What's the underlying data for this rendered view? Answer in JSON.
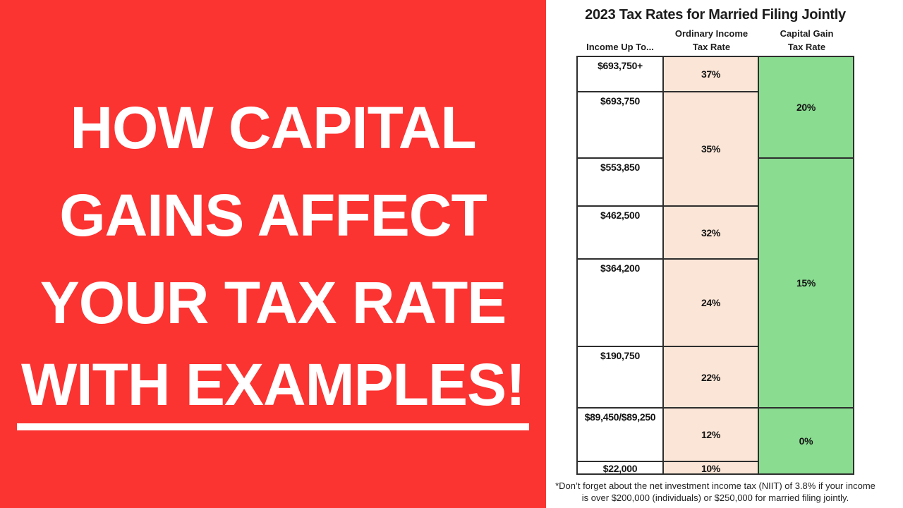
{
  "headline": {
    "lines": [
      "HOW CAPITAL",
      "GAINS AFFECT",
      "YOUR TAX RATE",
      "WITH EXAMPLES!"
    ],
    "underlined_line_index": 3,
    "text_color": "#ffffff",
    "background_color": "#fb3331"
  },
  "table": {
    "title": "2023 Tax Rates for Married Filing Jointly",
    "headers": {
      "income": "Income Up To...",
      "ordinary_line1": "Ordinary Income",
      "ordinary_line2": "Tax Rate",
      "capital_line1": "Capital Gain",
      "capital_line2": "Tax Rate"
    },
    "income": [
      "$693,750+",
      "$693,750",
      "$553,850",
      "$462,500",
      "$364,200",
      "$190,750",
      "$89,450/$89,250",
      "$22,000"
    ],
    "ordinary": [
      "37%",
      "35%",
      "32%",
      "24%",
      "22%",
      "12%",
      "10%"
    ],
    "capital": [
      "20%",
      "15%",
      "0%"
    ],
    "footnote_line1": "*Don’t forget about the net investment income tax (NIIT) of 3.8% if your income",
    "footnote_line2": "is over $200,000 (individuals) or $250,000 for married filing jointly.",
    "colors": {
      "ordinary_cell": "#fbe5d6",
      "capital_cell": "#89dc90",
      "border": "#2e2e2e"
    }
  },
  "chart_data": {
    "type": "table",
    "title": "2023 Tax Rates for Married Filing Jointly",
    "columns": [
      "Income Up To...",
      "Ordinary Income Tax Rate",
      "Capital Gain Tax Rate"
    ],
    "rows": [
      [
        "$693,750+",
        "37%",
        "20%"
      ],
      [
        "$693,750",
        "35%",
        "20%"
      ],
      [
        "$553,850",
        "35%",
        "15%"
      ],
      [
        "$462,500",
        "32%",
        "15%"
      ],
      [
        "$364,200",
        "24%",
        "15%"
      ],
      [
        "$190,750",
        "22%",
        "15%"
      ],
      [
        "$89,450/$89,250",
        "12%",
        "0%"
      ],
      [
        "$22,000",
        "10%",
        "0%"
      ]
    ],
    "merged_cells": {
      "ordinary_income": [
        {
          "label": "37%",
          "rows": [
            "$693,750+"
          ]
        },
        {
          "label": "35%",
          "rows": [
            "$693,750",
            "$553,850"
          ]
        },
        {
          "label": "32%",
          "rows": [
            "$462,500"
          ]
        },
        {
          "label": "24%",
          "rows": [
            "$364,200"
          ]
        },
        {
          "label": "22%",
          "rows": [
            "$190,750"
          ]
        },
        {
          "label": "12%",
          "rows": [
            "$89,450/$89,250"
          ]
        },
        {
          "label": "10%",
          "rows": [
            "$22,000"
          ]
        }
      ],
      "capital_gain": [
        {
          "label": "20%",
          "rows": [
            "$693,750+",
            "$693,750"
          ]
        },
        {
          "label": "15%",
          "rows": [
            "$553,850",
            "$462,500",
            "$364,200",
            "$190,750"
          ]
        },
        {
          "label": "0%",
          "rows": [
            "$89,450/$89,250",
            "$22,000"
          ]
        }
      ]
    },
    "footnote": "*Don’t forget about the net investment income tax (NIIT) of 3.8% if your income is over $200,000 (individuals) or $250,000 for married filing jointly."
  }
}
